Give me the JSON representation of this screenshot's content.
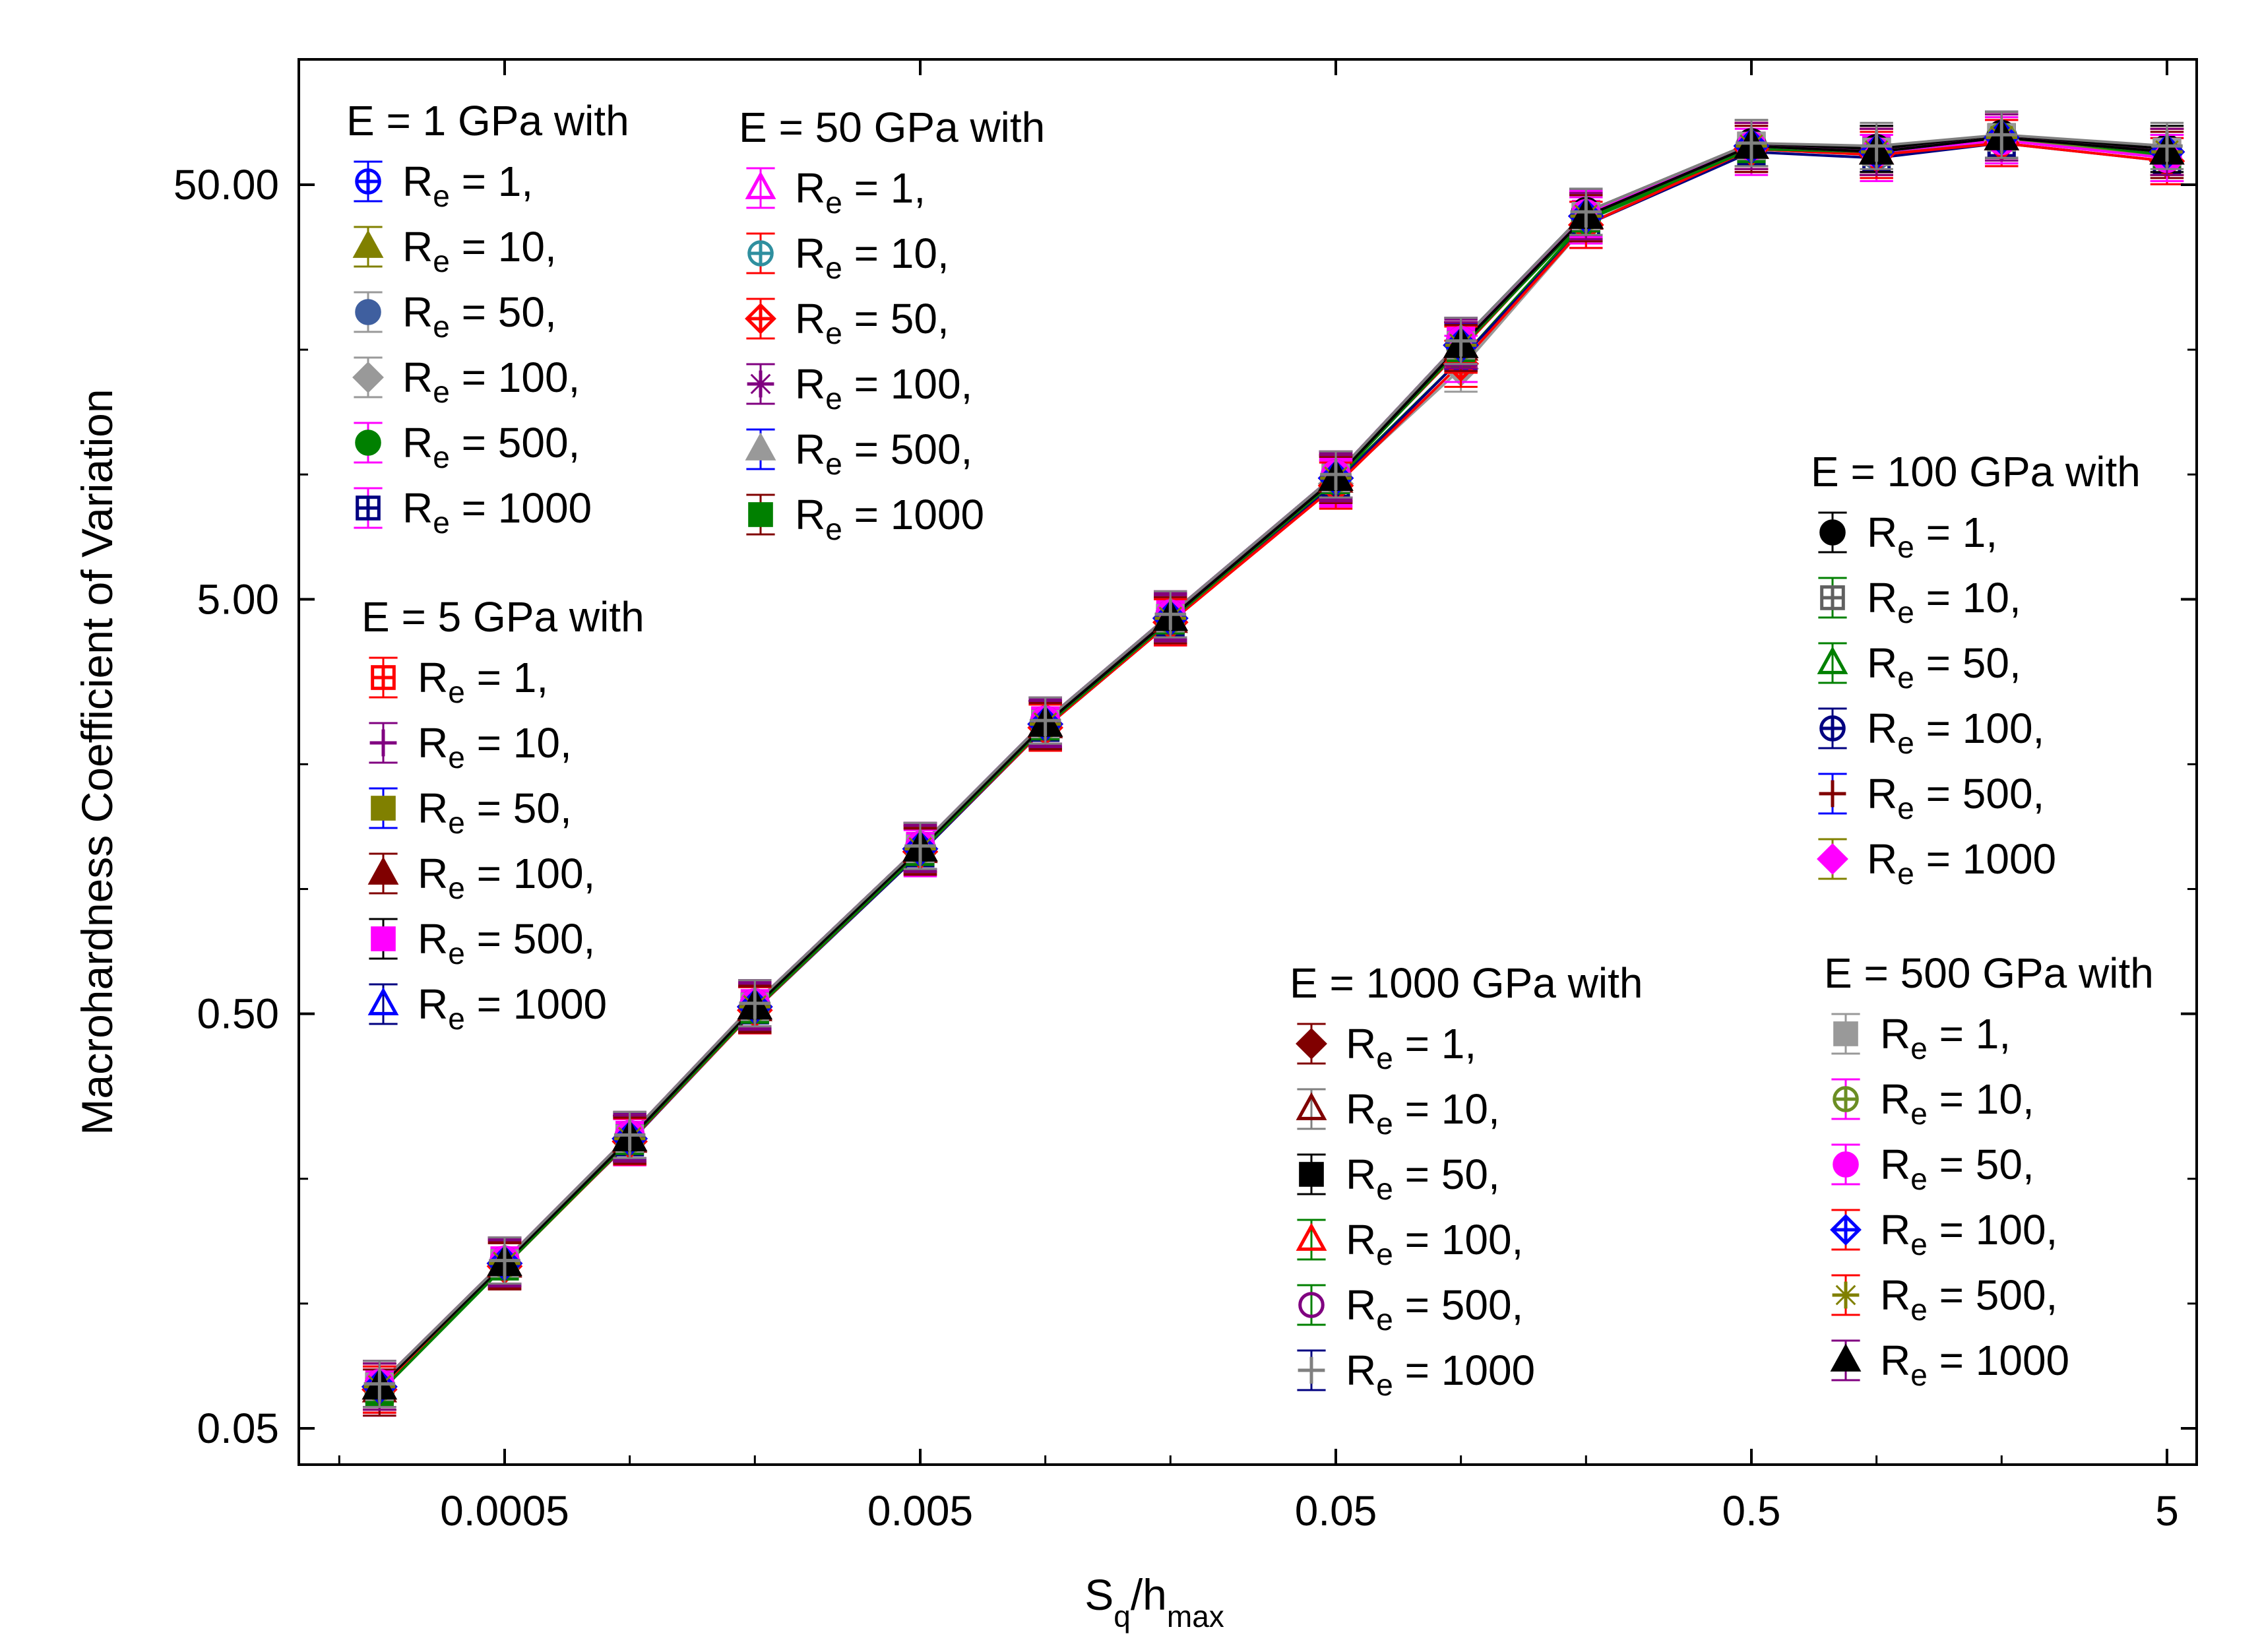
{
  "chart_data": {
    "type": "line",
    "title": "",
    "xlabel": "S_q/h_max",
    "xlabel_main": "S",
    "xlabel_sub1": "q",
    "xlabel_mid": "/h",
    "xlabel_sub2": "max",
    "ylabel": "Macrohardness Coefficient of Variation",
    "xscale": "log",
    "yscale": "log",
    "xlim": [
      0.0001,
      7
    ],
    "ylim": [
      0.035,
      105
    ],
    "x_ticks": [
      {
        "value": 0.0005,
        "label": "0.0005"
      },
      {
        "value": 0.005,
        "label": "0.005"
      },
      {
        "value": 0.05,
        "label": "0.05"
      },
      {
        "value": 0.5,
        "label": "0.5"
      },
      {
        "value": 5,
        "label": "5"
      }
    ],
    "y_ticks": [
      {
        "value": 0.05,
        "label": "0.05"
      },
      {
        "value": 0.5,
        "label": "0.50"
      },
      {
        "value": 5,
        "label": "5.00"
      },
      {
        "value": 50,
        "label": "50.00"
      }
    ],
    "x": [
      0.00025,
      0.0005,
      0.001,
      0.002,
      0.005,
      0.01,
      0.02,
      0.05,
      0.1,
      0.2,
      0.5,
      1,
      2,
      5
    ],
    "base_values": [
      0.063,
      0.125,
      0.25,
      0.52,
      1.25,
      2.5,
      4.5,
      9.8,
      20.5,
      42,
      62,
      60,
      65,
      60
    ],
    "series": [
      {
        "group": 0,
        "name": "R_e = 1,",
        "label_value": "1,",
        "marker": "circle-plus",
        "filled": false,
        "color": "#0000ff",
        "bar_color": "#0000ff",
        "values": [
          0.064,
          0.126,
          0.254,
          0.53,
          1.27,
          2.55,
          4.6,
          10.0,
          21.0,
          43.0,
          62.0,
          60.0,
          66.0,
          60.0
        ]
      },
      {
        "group": 0,
        "name": "R_e = 10,",
        "label_value": "10,",
        "marker": "triangle",
        "filled": true,
        "color": "#808000",
        "bar_color": "#808000",
        "values": [
          0.063,
          0.125,
          0.25,
          0.52,
          1.25,
          2.5,
          4.5,
          9.8,
          20.5,
          42.0,
          62.0,
          60.0,
          65.0,
          60.0
        ]
      },
      {
        "group": 0,
        "name": "R_e = 50,",
        "label_value": "50,",
        "marker": "circle",
        "filled": true,
        "color": "#3f5f9f",
        "bar_color": "#999999",
        "values": [
          0.062,
          0.124,
          0.248,
          0.515,
          1.24,
          2.48,
          4.45,
          9.7,
          20.3,
          41.5,
          61.0,
          59.0,
          64.0,
          59.0
        ]
      },
      {
        "group": 0,
        "name": "R_e = 100,",
        "label_value": "100,",
        "marker": "diamond",
        "filled": true,
        "color": "#999999",
        "bar_color": "#999999",
        "values": [
          0.063,
          0.125,
          0.25,
          0.52,
          1.25,
          2.5,
          4.5,
          9.5,
          18.0,
          40.0,
          62.0,
          60.0,
          64.0,
          60.0
        ]
      },
      {
        "group": 0,
        "name": "R_e = 500,",
        "label_value": "500,",
        "marker": "circle",
        "filled": true,
        "color": "#008000",
        "bar_color": "#ff00ff",
        "values": [
          0.061,
          0.123,
          0.246,
          0.51,
          1.23,
          2.45,
          4.4,
          9.6,
          19.0,
          41.0,
          61.0,
          60.0,
          65.0,
          58.0
        ]
      },
      {
        "group": 0,
        "name": "R_e = 1000",
        "label_value": "1000",
        "marker": "square-plus",
        "filled": false,
        "color": "#000080",
        "bar_color": "#ff00ff",
        "values": [
          0.062,
          0.124,
          0.245,
          0.51,
          1.22,
          2.45,
          4.4,
          9.5,
          19.0,
          40.0,
          60.0,
          58.0,
          63.0,
          57.0
        ]
      },
      {
        "group": 1,
        "name": "R_e = 1,",
        "label_value": "1,",
        "marker": "square-plus",
        "filled": false,
        "color": "#ff0000",
        "bar_color": "#ff0000",
        "values": [
          0.063,
          0.125,
          0.25,
          0.52,
          1.25,
          2.5,
          4.5,
          9.8,
          20.0,
          42.0,
          62.0,
          60.0,
          65.0,
          60.0
        ]
      },
      {
        "group": 1,
        "name": "R_e = 10,",
        "label_value": "10,",
        "marker": "plus",
        "filled": false,
        "color": "#800080",
        "bar_color": "#800080",
        "values": [
          0.063,
          0.126,
          0.25,
          0.52,
          1.26,
          2.5,
          4.5,
          9.9,
          20.5,
          42.0,
          62.0,
          60.0,
          65.0,
          60.0
        ]
      },
      {
        "group": 1,
        "name": "R_e = 50,",
        "label_value": "50,",
        "marker": "square",
        "filled": true,
        "color": "#808000",
        "bar_color": "#0000ff",
        "values": [
          0.063,
          0.125,
          0.25,
          0.52,
          1.25,
          2.5,
          4.5,
          9.8,
          20.4,
          42.0,
          62.0,
          60.0,
          65.0,
          60.0
        ]
      },
      {
        "group": 1,
        "name": "R_e = 100,",
        "label_value": "100,",
        "marker": "triangle",
        "filled": true,
        "color": "#800000",
        "bar_color": "#800000",
        "values": [
          0.062,
          0.124,
          0.248,
          0.515,
          1.24,
          2.48,
          4.45,
          9.7,
          20.2,
          41.8,
          62.0,
          60.0,
          65.0,
          60.0
        ]
      },
      {
        "group": 1,
        "name": "R_e = 500,",
        "label_value": "500,",
        "marker": "square",
        "filled": true,
        "color": "#ff00ff",
        "bar_color": "#000000",
        "values": [
          0.064,
          0.127,
          0.255,
          0.53,
          1.27,
          2.55,
          4.6,
          10.0,
          21.0,
          42.5,
          62.0,
          61.0,
          65.0,
          60.0
        ]
      },
      {
        "group": 1,
        "name": "R_e = 1000",
        "label_value": "1000",
        "marker": "triangle",
        "filled": false,
        "color": "#0000ff",
        "bar_color": "#000080",
        "values": [
          0.063,
          0.125,
          0.25,
          0.52,
          1.25,
          2.5,
          4.5,
          9.8,
          20.5,
          42.0,
          62.0,
          60.0,
          65.0,
          60.0
        ]
      },
      {
        "group": 2,
        "name": "R_e = 1,",
        "label_value": "1,",
        "marker": "triangle",
        "filled": false,
        "color": "#ff00ff",
        "bar_color": "#ff00ff",
        "values": [
          0.063,
          0.125,
          0.25,
          0.52,
          1.25,
          2.5,
          4.5,
          9.8,
          20.5,
          42.0,
          62.0,
          60.0,
          65.0,
          60.0
        ]
      },
      {
        "group": 2,
        "name": "R_e = 10,",
        "label_value": "10,",
        "marker": "circle-plus",
        "filled": false,
        "color": "#2f8f9f",
        "bar_color": "#ff0000",
        "values": [
          0.063,
          0.125,
          0.25,
          0.52,
          1.25,
          2.5,
          4.5,
          9.8,
          20.5,
          42.0,
          62.0,
          60.0,
          65.0,
          60.0
        ]
      },
      {
        "group": 2,
        "name": "R_e = 50,",
        "label_value": "50,",
        "marker": "diamond-plus",
        "filled": false,
        "color": "#ff0000",
        "bar_color": "#ff0000",
        "values": [
          0.062,
          0.123,
          0.246,
          0.51,
          1.23,
          2.45,
          4.4,
          9.4,
          18.5,
          40.0,
          61.0,
          59.0,
          63.0,
          57.0
        ]
      },
      {
        "group": 2,
        "name": "R_e = 100,",
        "label_value": "100,",
        "marker": "star",
        "filled": false,
        "color": "#800080",
        "bar_color": "#800080",
        "values": [
          0.063,
          0.126,
          0.252,
          0.525,
          1.26,
          2.52,
          4.55,
          9.9,
          20.8,
          42.5,
          62.0,
          61.0,
          66.0,
          60.0
        ]
      },
      {
        "group": 2,
        "name": "R_e = 500,",
        "label_value": "500,",
        "marker": "triangle",
        "filled": true,
        "color": "#999999",
        "bar_color": "#0000ff",
        "values": [
          0.063,
          0.125,
          0.25,
          0.52,
          1.25,
          2.5,
          4.5,
          9.8,
          20.5,
          42.0,
          62.0,
          60.0,
          65.0,
          60.0
        ]
      },
      {
        "group": 2,
        "name": "R_e = 1000",
        "label_value": "1000",
        "marker": "square",
        "filled": true,
        "color": "#008000",
        "bar_color": "#800000",
        "values": [
          0.061,
          0.123,
          0.247,
          0.512,
          1.23,
          2.47,
          4.45,
          9.7,
          20.2,
          41.5,
          61.0,
          60.0,
          65.0,
          59.0
        ]
      },
      {
        "group": 3,
        "name": "R_e = 1,",
        "label_value": "1,",
        "marker": "circle",
        "filled": true,
        "color": "#000000",
        "bar_color": "#000000",
        "values": [
          0.064,
          0.127,
          0.255,
          0.53,
          1.27,
          2.55,
          4.6,
          10.0,
          21.0,
          43.0,
          63.0,
          61.0,
          66.0,
          61.0
        ]
      },
      {
        "group": 3,
        "name": "R_e = 10,",
        "label_value": "10,",
        "marker": "square-plus",
        "filled": false,
        "color": "#606060",
        "bar_color": "#008000",
        "values": [
          0.063,
          0.125,
          0.25,
          0.52,
          1.25,
          2.5,
          4.5,
          9.8,
          20.5,
          42.0,
          62.0,
          60.0,
          65.0,
          60.0
        ]
      },
      {
        "group": 3,
        "name": "R_e = 50,",
        "label_value": "50,",
        "marker": "triangle",
        "filled": false,
        "color": "#008000",
        "bar_color": "#008000",
        "values": [
          0.063,
          0.125,
          0.25,
          0.52,
          1.25,
          2.5,
          4.5,
          9.8,
          20.5,
          42.0,
          62.0,
          60.0,
          65.0,
          60.0
        ]
      },
      {
        "group": 3,
        "name": "R_e = 100,",
        "label_value": "100,",
        "marker": "circle-plus",
        "filled": false,
        "color": "#000080",
        "bar_color": "#000080",
        "values": [
          0.063,
          0.125,
          0.25,
          0.52,
          1.25,
          2.5,
          4.5,
          9.8,
          20.5,
          42.0,
          62.0,
          60.0,
          65.0,
          60.0
        ]
      },
      {
        "group": 3,
        "name": "R_e = 500,",
        "label_value": "500,",
        "marker": "plus",
        "filled": false,
        "color": "#800000",
        "bar_color": "#0000ff",
        "values": [
          0.063,
          0.125,
          0.25,
          0.52,
          1.25,
          2.5,
          4.5,
          9.8,
          20.5,
          42.0,
          62.0,
          60.0,
          65.0,
          60.0
        ]
      },
      {
        "group": 3,
        "name": "R_e = 1000",
        "label_value": "1000",
        "marker": "diamond",
        "filled": true,
        "color": "#ff00ff",
        "bar_color": "#808000",
        "values": [
          0.063,
          0.125,
          0.25,
          0.52,
          1.25,
          2.5,
          4.5,
          9.8,
          20.5,
          42.0,
          62.0,
          60.0,
          65.0,
          60.0
        ]
      },
      {
        "group": 4,
        "name": "R_e = 1,",
        "label_value": "1,",
        "marker": "diamond",
        "filled": true,
        "color": "#800000",
        "bar_color": "#800000",
        "values": [
          0.063,
          0.125,
          0.25,
          0.52,
          1.25,
          2.5,
          4.5,
          9.8,
          20.5,
          42.0,
          62.0,
          60.0,
          65.0,
          60.0
        ]
      },
      {
        "group": 4,
        "name": "R_e = 10,",
        "label_value": "10,",
        "marker": "triangle",
        "filled": false,
        "color": "#800000",
        "bar_color": "#808080",
        "values": [
          0.063,
          0.125,
          0.25,
          0.52,
          1.25,
          2.5,
          4.5,
          9.8,
          20.5,
          42.0,
          62.0,
          60.0,
          65.0,
          60.0
        ]
      },
      {
        "group": 4,
        "name": "R_e = 50,",
        "label_value": "50,",
        "marker": "square",
        "filled": true,
        "color": "#000000",
        "bar_color": "#000000",
        "values": [
          0.063,
          0.125,
          0.25,
          0.52,
          1.25,
          2.5,
          4.5,
          9.8,
          20.5,
          42.0,
          62.0,
          60.0,
          65.0,
          60.0
        ]
      },
      {
        "group": 4,
        "name": "R_e = 100,",
        "label_value": "100,",
        "marker": "triangle",
        "filled": false,
        "color": "#ff0000",
        "bar_color": "#008000",
        "values": [
          0.063,
          0.125,
          0.25,
          0.52,
          1.25,
          2.5,
          4.5,
          9.8,
          20.5,
          42.0,
          62.0,
          60.0,
          65.0,
          60.0
        ]
      },
      {
        "group": 4,
        "name": "R_e = 500,",
        "label_value": "500,",
        "marker": "circle",
        "filled": false,
        "color": "#800080",
        "bar_color": "#008000",
        "values": [
          0.063,
          0.125,
          0.25,
          0.52,
          1.25,
          2.5,
          4.5,
          9.8,
          20.5,
          42.0,
          62.0,
          60.0,
          65.0,
          60.0
        ]
      },
      {
        "group": 4,
        "name": "R_e = 1000",
        "label_value": "1000",
        "marker": "plus",
        "filled": false,
        "color": "#808080",
        "bar_color": "#000080",
        "values": [
          0.063,
          0.125,
          0.25,
          0.52,
          1.25,
          2.5,
          4.5,
          9.8,
          20.5,
          42.0,
          62.0,
          60.0,
          65.0,
          60.0
        ]
      },
      {
        "group": 5,
        "name": "R_e = 1,",
        "label_value": "1,",
        "marker": "square",
        "filled": true,
        "color": "#999999",
        "bar_color": "#999999",
        "values": [
          0.063,
          0.125,
          0.25,
          0.52,
          1.25,
          2.5,
          4.5,
          9.8,
          20.5,
          42.0,
          62.0,
          60.0,
          65.0,
          60.0
        ]
      },
      {
        "group": 5,
        "name": "R_e = 10,",
        "label_value": "10,",
        "marker": "circle-plus",
        "filled": false,
        "color": "#6b8e23",
        "bar_color": "#ff00ff",
        "values": [
          0.063,
          0.125,
          0.25,
          0.52,
          1.25,
          2.5,
          4.5,
          9.8,
          20.5,
          42.0,
          62.0,
          60.0,
          65.0,
          58.0
        ]
      },
      {
        "group": 5,
        "name": "R_e = 50,",
        "label_value": "50,",
        "marker": "circle",
        "filled": true,
        "color": "#ff00ff",
        "bar_color": "#ff00ff",
        "values": [
          0.064,
          0.127,
          0.255,
          0.53,
          1.27,
          2.55,
          4.6,
          10.0,
          21.0,
          42.5,
          62.0,
          60.0,
          64.0,
          58.0
        ]
      },
      {
        "group": 5,
        "name": "R_e = 100,",
        "label_value": "100,",
        "marker": "diamond-plus",
        "filled": false,
        "color": "#0000ff",
        "bar_color": "#ff0000",
        "values": [
          0.063,
          0.125,
          0.25,
          0.52,
          1.25,
          2.5,
          4.5,
          9.8,
          20.5,
          42.0,
          62.0,
          60.0,
          65.0,
          60.0
        ]
      },
      {
        "group": 5,
        "name": "R_e = 500,",
        "label_value": "500,",
        "marker": "star",
        "filled": false,
        "color": "#808000",
        "bar_color": "#ff0000",
        "values": [
          0.063,
          0.125,
          0.25,
          0.52,
          1.25,
          2.5,
          4.5,
          9.8,
          20.5,
          42.0,
          62.0,
          60.0,
          65.0,
          60.0
        ]
      },
      {
        "group": 5,
        "name": "R_e = 1000",
        "label_value": "1000",
        "marker": "triangle",
        "filled": true,
        "color": "#000000",
        "bar_color": "#800080",
        "values": [
          0.063,
          0.125,
          0.25,
          0.52,
          1.25,
          2.5,
          4.5,
          9.8,
          20.5,
          42.0,
          62.0,
          60.0,
          65.0,
          60.0
        ]
      }
    ],
    "top_series": {
      "name": "R_e = 1000",
      "marker": "plus",
      "color": "#808080",
      "values": [
        0.064,
        0.127,
        0.255,
        0.53,
        1.27,
        2.55,
        4.6,
        10.0,
        21.0,
        43.0,
        63.0,
        62.0,
        66.0,
        62.0
      ]
    },
    "legend_groups": [
      {
        "title": "E = 1 GPa with",
        "placement": "top-left"
      },
      {
        "title": "E = 5 GPa with",
        "placement": "middle-left"
      },
      {
        "title": "E = 50 GPa with",
        "placement": "top-left-center"
      },
      {
        "title": "E = 100 GPa with",
        "placement": "right-middle"
      },
      {
        "title": "E = 1000 GPa with",
        "placement": "bottom-center-right"
      },
      {
        "title": "E = 500 GPa with",
        "placement": "bottom-right"
      }
    ],
    "legend_label_prefix": "R",
    "legend_label_sub": "e",
    "legend_label_eq": " = "
  }
}
